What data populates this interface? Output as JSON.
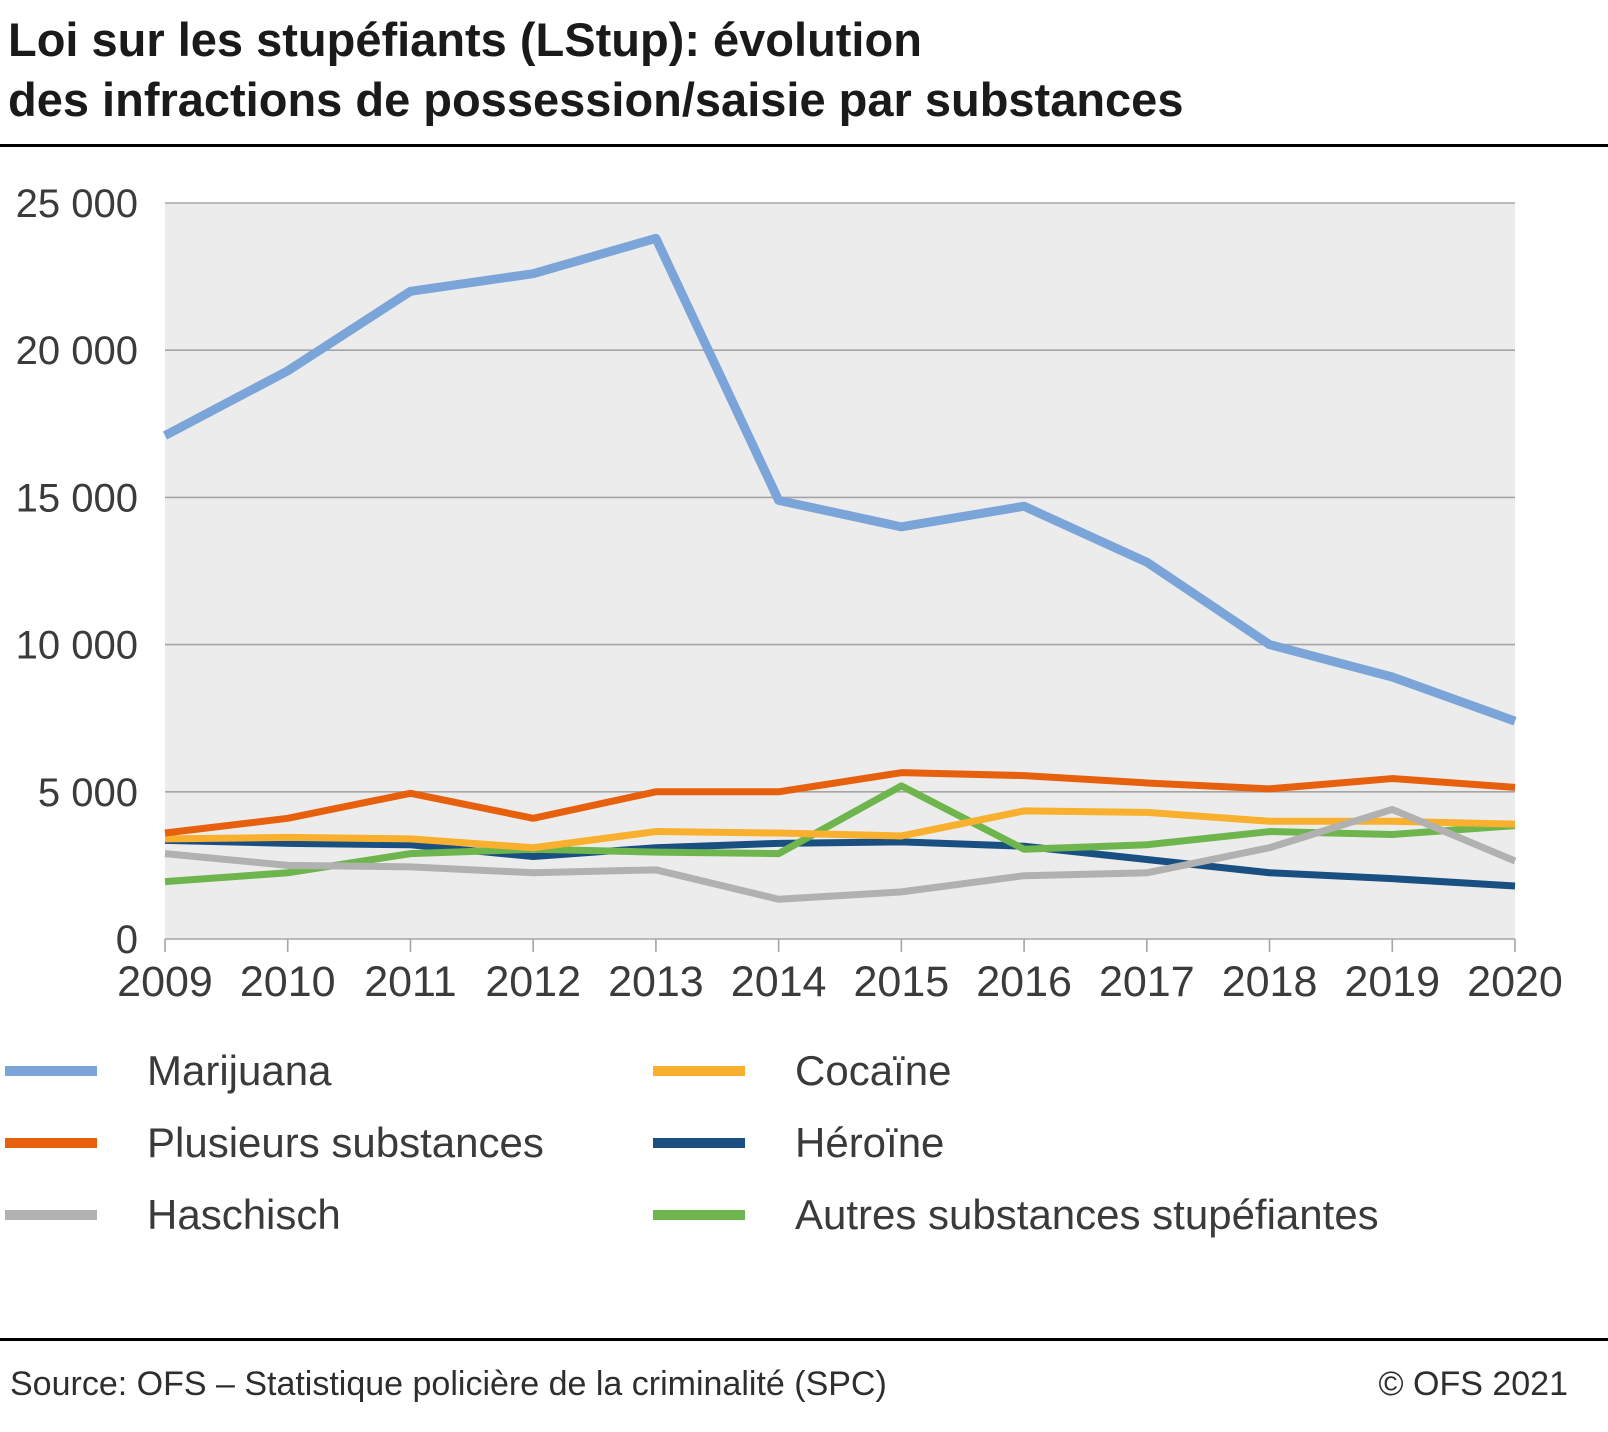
{
  "title": {
    "line1": "Loi sur les stupéfiants (LStup): évolution",
    "line2": "des infractions de possession/saisie par substances"
  },
  "footer": {
    "source": "Source: OFS – Statistique policière de la criminalité (SPC)",
    "copyright": "© OFS 2021"
  },
  "chart_data": {
    "type": "line",
    "title": "Loi sur les stupéfiants (LStup): évolution des infractions de possession/saisie par substances",
    "x": [
      2009,
      2010,
      2011,
      2012,
      2013,
      2014,
      2015,
      2016,
      2017,
      2018,
      2019,
      2020
    ],
    "xlabel": "",
    "ylabel": "",
    "ylim": [
      0,
      25000
    ],
    "yticks": [
      0,
      5000,
      10000,
      15000,
      20000,
      25000
    ],
    "ytick_labels": [
      "0",
      "5 000",
      "10 000",
      "15 000",
      "20 000",
      "25 000"
    ],
    "grid": true,
    "legend_position": "bottom-two-columns",
    "plot_bg": "#ececec",
    "grid_color": "#a5a5a5",
    "axis_text_color": "#3b3b3b",
    "series": [
      {
        "name": "Marijuana",
        "color": "#7ba4d9",
        "width": 9,
        "values": [
          17100,
          19300,
          22000,
          22600,
          23800,
          14900,
          14000,
          14700,
          12800,
          10000,
          8900,
          7400
        ]
      },
      {
        "name": "Plusieurs substances",
        "color": "#e6600d",
        "width": 7,
        "values": [
          3600,
          4100,
          4950,
          4100,
          5000,
          5000,
          5650,
          5550,
          5300,
          5100,
          5450,
          5150
        ]
      },
      {
        "name": "Haschisch",
        "color": "#b1b1b1",
        "width": 7,
        "values": [
          2900,
          2500,
          2450,
          2250,
          2350,
          1350,
          1600,
          2150,
          2250,
          3100,
          4400,
          2650
        ]
      },
      {
        "name": "Cocaïne",
        "color": "#f9b02e",
        "width": 7,
        "values": [
          3400,
          3450,
          3400,
          3100,
          3650,
          3600,
          3500,
          4350,
          4300,
          4000,
          4000,
          3900
        ]
      },
      {
        "name": "Héroïne",
        "color": "#1a4f82",
        "width": 7,
        "values": [
          3350,
          3250,
          3200,
          2800,
          3100,
          3250,
          3300,
          3150,
          2700,
          2250,
          2050,
          1800
        ]
      },
      {
        "name": "Autres substances stupéfiantes",
        "color": "#6db54c",
        "width": 7,
        "values": [
          1950,
          2250,
          2900,
          3050,
          2950,
          2900,
          5200,
          3050,
          3200,
          3650,
          3550,
          3850
        ]
      }
    ],
    "draw_order": [
      0,
      4,
      5,
      3,
      1,
      2
    ]
  }
}
